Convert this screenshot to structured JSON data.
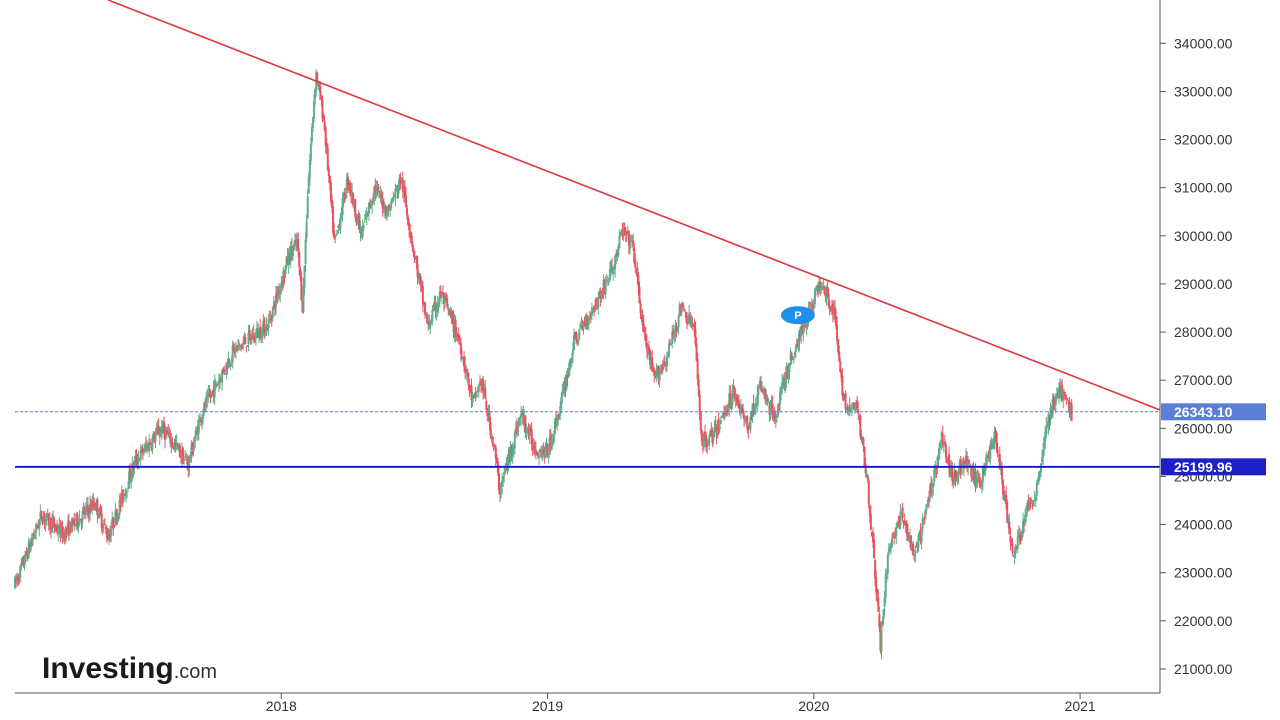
{
  "brand": {
    "logo_main": "Investing",
    "logo_suffix": ".com"
  },
  "colors": {
    "up": "#5dae8b",
    "down": "#e8525f",
    "trendline": "#e0383f",
    "support": "#1f1fc7",
    "current_tag": "#5b7fd6",
    "support_tag": "#1f1fc7",
    "pin": "#1e90e8"
  },
  "chart_data": {
    "type": "candlestick",
    "ylim": [
      20500,
      34900
    ],
    "yticks": [
      21000,
      22000,
      23000,
      24000,
      25000,
      26000,
      27000,
      28000,
      29000,
      30000,
      31000,
      32000,
      33000,
      34000
    ],
    "ytick_labels": [
      "21000.00",
      "22000.00",
      "23000.00",
      "24000.00",
      "25000.00",
      "26000.00",
      "27000.00",
      "28000.00",
      "29000.00",
      "30000.00",
      "31000.00",
      "32000.00",
      "33000.00",
      "34000.00"
    ],
    "xlim": [
      2017.0,
      2021.3
    ],
    "xticks": [
      2018,
      2019,
      2020,
      2021
    ],
    "xtick_labels": [
      "2018",
      "2019",
      "2020",
      "2021"
    ],
    "trendline": {
      "x": [
        2017.35,
        2021.3
      ],
      "y": [
        34900,
        26380
      ]
    },
    "support_level": {
      "value": 25199.96,
      "label": "25199.96"
    },
    "current_price": {
      "value": 26343.1,
      "label": "26343.10"
    },
    "annotations": [
      {
        "text": "P",
        "x": 2019.94,
        "y": 28350
      }
    ],
    "path": [
      [
        2017.0,
        22750
      ],
      [
        2017.1,
        24200
      ],
      [
        2017.18,
        23800
      ],
      [
        2017.3,
        24450
      ],
      [
        2017.35,
        23750
      ],
      [
        2017.45,
        25300
      ],
      [
        2017.55,
        26000
      ],
      [
        2017.6,
        25650
      ],
      [
        2017.65,
        25250
      ],
      [
        2017.7,
        26300
      ],
      [
        2017.82,
        27600
      ],
      [
        2017.95,
        28150
      ],
      [
        2018.03,
        29600
      ],
      [
        2018.06,
        29850
      ],
      [
        2018.08,
        28500
      ],
      [
        2018.1,
        31000
      ],
      [
        2018.13,
        33400
      ],
      [
        2018.16,
        32400
      ],
      [
        2018.2,
        29800
      ],
      [
        2018.25,
        31200
      ],
      [
        2018.3,
        30000
      ],
      [
        2018.35,
        31000
      ],
      [
        2018.4,
        30500
      ],
      [
        2018.45,
        31200
      ],
      [
        2018.5,
        29600
      ],
      [
        2018.55,
        28100
      ],
      [
        2018.6,
        28800
      ],
      [
        2018.67,
        27800
      ],
      [
        2018.72,
        26500
      ],
      [
        2018.75,
        27000
      ],
      [
        2018.8,
        25600
      ],
      [
        2018.82,
        24700
      ],
      [
        2018.87,
        25700
      ],
      [
        2018.9,
        26300
      ],
      [
        2018.95,
        25600
      ],
      [
        2019.0,
        25500
      ],
      [
        2019.05,
        26500
      ],
      [
        2019.1,
        27800
      ],
      [
        2019.15,
        28300
      ],
      [
        2019.2,
        28800
      ],
      [
        2019.25,
        29400
      ],
      [
        2019.28,
        30100
      ],
      [
        2019.32,
        29800
      ],
      [
        2019.36,
        28000
      ],
      [
        2019.4,
        27000
      ],
      [
        2019.45,
        27500
      ],
      [
        2019.5,
        28500
      ],
      [
        2019.55,
        28100
      ],
      [
        2019.58,
        25700
      ],
      [
        2019.63,
        25900
      ],
      [
        2019.7,
        26800
      ],
      [
        2019.75,
        26000
      ],
      [
        2019.8,
        26900
      ],
      [
        2019.85,
        26200
      ],
      [
        2019.9,
        27200
      ],
      [
        2019.98,
        28400
      ],
      [
        2020.03,
        29100
      ],
      [
        2020.08,
        28300
      ],
      [
        2020.1,
        27000
      ],
      [
        2020.13,
        26300
      ],
      [
        2020.16,
        26500
      ],
      [
        2020.2,
        25000
      ],
      [
        2020.23,
        23000
      ],
      [
        2020.25,
        21500
      ],
      [
        2020.28,
        23500
      ],
      [
        2020.33,
        24200
      ],
      [
        2020.38,
        23300
      ],
      [
        2020.43,
        24500
      ],
      [
        2020.48,
        25800
      ],
      [
        2020.52,
        25000
      ],
      [
        2020.57,
        25300
      ],
      [
        2020.62,
        24800
      ],
      [
        2020.68,
        25900
      ],
      [
        2020.72,
        24400
      ],
      [
        2020.75,
        23300
      ],
      [
        2020.8,
        24300
      ],
      [
        2020.83,
        24600
      ],
      [
        2020.88,
        26200
      ],
      [
        2020.92,
        26800
      ],
      [
        2020.97,
        26300
      ]
    ]
  }
}
